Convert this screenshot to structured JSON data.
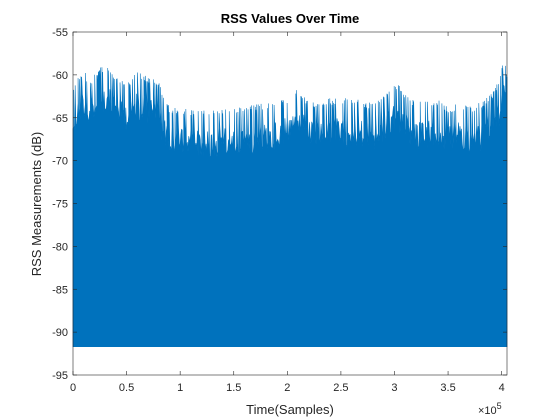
{
  "chart_data": {
    "type": "line",
    "title": "RSS Values Over Time",
    "xlabel": "Time(Samples)",
    "ylabel": "RSS Measurements (dB)",
    "x_exponent_base": "×10",
    "x_exponent_power": "5",
    "xlim": [
      0,
      405000
    ],
    "ylim": [
      -95,
      -55
    ],
    "x_ticks": [
      0,
      50000,
      100000,
      150000,
      200000,
      250000,
      300000,
      350000,
      400000
    ],
    "x_tick_labels": [
      "0",
      "0.5",
      "1",
      "1.5",
      "2",
      "2.5",
      "3",
      "3.5",
      "4"
    ],
    "y_ticks": [
      -95,
      -90,
      -85,
      -80,
      -75,
      -70,
      -65,
      -60,
      -55
    ],
    "y_tick_labels": [
      "-95",
      "-90",
      "-85",
      "-80",
      "-75",
      "-70",
      "-65",
      "-60",
      "-55"
    ],
    "grid": false,
    "series": [
      {
        "color": "#0072BD",
        "sample_count": 405000,
        "lower_bound": -91.7,
        "upper_envelope": {
          "x": [
            0,
            5000,
            10000,
            15000,
            20000,
            30000,
            40000,
            50000,
            60000,
            70000,
            80000,
            85000,
            90000,
            100000,
            120000,
            140000,
            160000,
            180000,
            200000,
            210000,
            220000,
            240000,
            260000,
            280000,
            290000,
            300000,
            320000,
            340000,
            350000,
            360000,
            370000,
            380000,
            390000,
            395000,
            400000,
            402000,
            405000
          ],
          "y": [
            -62.5,
            -61.0,
            -60.0,
            -61.5,
            -60.5,
            -59.5,
            -61.0,
            -61.5,
            -60.5,
            -61.0,
            -61.5,
            -63.5,
            -64.5,
            -64.5,
            -65.0,
            -64.5,
            -64.5,
            -64.0,
            -63.5,
            -62.0,
            -64.0,
            -63.5,
            -63.5,
            -64.0,
            -63.0,
            -61.5,
            -64.0,
            -63.5,
            -64.5,
            -64.0,
            -64.5,
            -64.0,
            -63.0,
            -62.0,
            -60.0,
            -58.5,
            -60.5
          ]
        }
      }
    ]
  }
}
